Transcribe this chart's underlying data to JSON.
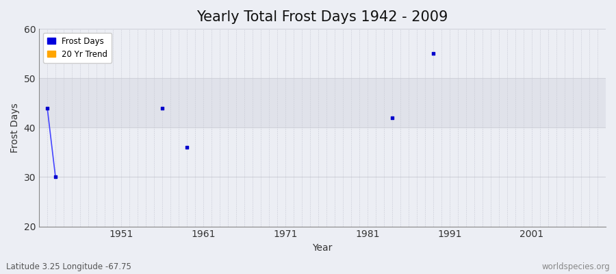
{
  "title": "Yearly Total Frost Days 1942 - 2009",
  "xlabel": "Year",
  "ylabel": "Frost Days",
  "subtitle_left": "Latitude 3.25 Longitude -67.75",
  "subtitle_right": "worldspecies.org",
  "xlim": [
    1941,
    2010
  ],
  "ylim": [
    20,
    60
  ],
  "yticks": [
    20,
    30,
    40,
    50,
    60
  ],
  "xticks": [
    1951,
    1961,
    1971,
    1981,
    1991,
    2001
  ],
  "frost_days_x": [
    1942,
    1943,
    1956,
    1959,
    1984,
    1989
  ],
  "frost_days_y": [
    44,
    30,
    44,
    36,
    42,
    55
  ],
  "trend_line_x": [
    1942,
    1943
  ],
  "trend_line_y": [
    44,
    30
  ],
  "point_color": "#0000cc",
  "trend_color": "#4444ff",
  "plot_bg_color": "#eceef4",
  "band_color": "#e0e2ea",
  "band_ymin": 40,
  "band_ymax": 50,
  "grid_color": "#c8cad4",
  "legend_frost_color": "#0000dd",
  "legend_trend_color": "#ffa500",
  "title_fontsize": 15,
  "axis_label_fontsize": 10,
  "tick_fontsize": 10,
  "subtitle_fontsize": 8.5,
  "spine_color": "#888888"
}
